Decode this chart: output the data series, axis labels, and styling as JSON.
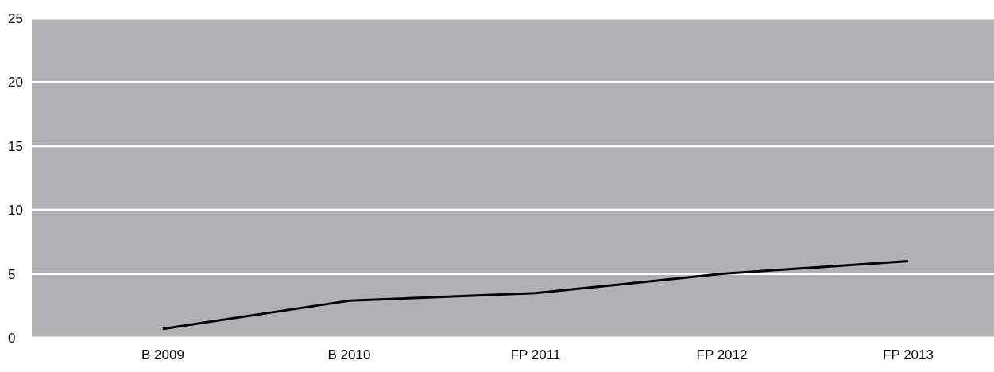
{
  "chart_data": {
    "type": "line",
    "categories": [
      "B 2009",
      "B 2010",
      "FP 2011",
      "FP 2012",
      "FP 2013"
    ],
    "series": [
      {
        "color": "#000000",
        "values": [
          0.7,
          2.9,
          3.5,
          5.0,
          6.0
        ]
      }
    ],
    "ylim": [
      0,
      25
    ],
    "yticks": [
      0,
      5,
      10,
      15,
      20,
      25
    ],
    "grid": "y",
    "marker": "none",
    "line_style": "solid"
  }
}
